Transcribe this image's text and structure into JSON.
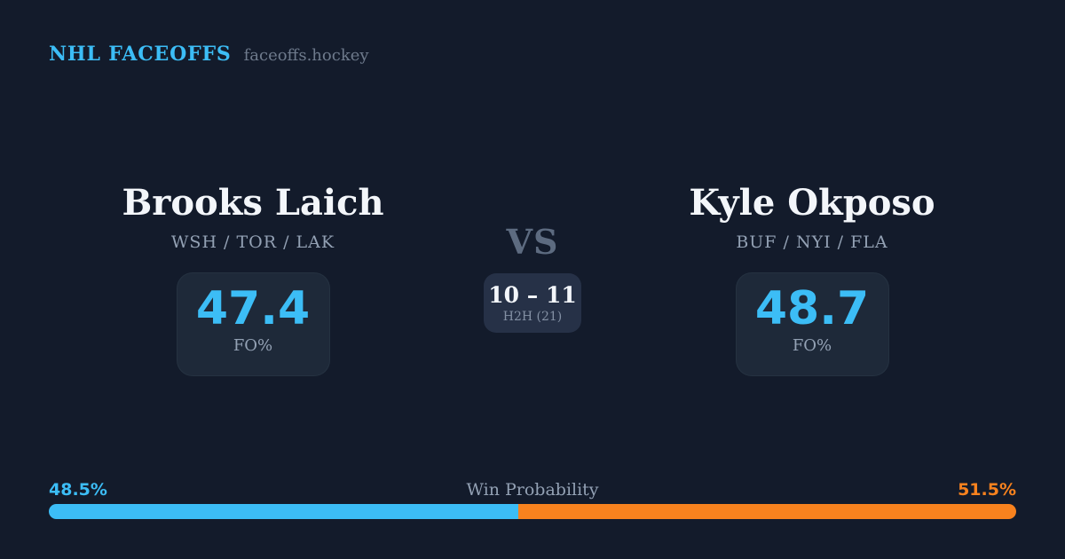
{
  "header": {
    "brand": "NHL FACEOFFS",
    "site": "faceoffs.hockey"
  },
  "matchup": {
    "vs_label": "VS",
    "h2h": {
      "score": "10 – 11",
      "label": "H2H (21)"
    },
    "players": [
      {
        "name": "Brooks Laich",
        "teams": "WSH / TOR / LAK",
        "fo_pct": "47.4",
        "stat_label": "FO%"
      },
      {
        "name": "Kyle Okposo",
        "teams": "BUF / NYI / FLA",
        "fo_pct": "48.7",
        "stat_label": "FO%"
      }
    ]
  },
  "win_probability": {
    "label": "Win Probability",
    "left_pct_label": "48.5%",
    "right_pct_label": "51.5%",
    "left_value": 48.5,
    "right_value": 51.5,
    "left_color": "#3cbdf6",
    "right_color": "#f8821e"
  },
  "colors": {
    "background": "#131b2b",
    "card_background": "#1e2939",
    "h2h_card_background": "#263147",
    "accent_blue": "#3cbdf6",
    "accent_orange": "#f8821e",
    "text_primary": "#f3f6fa",
    "text_muted": "#93a1b4"
  }
}
